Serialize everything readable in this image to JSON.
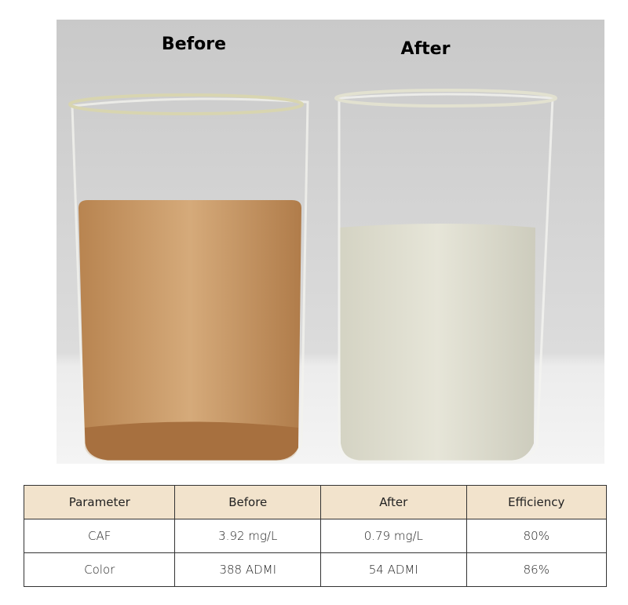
{
  "photo": {
    "labels": [
      "Before",
      "After"
    ]
  },
  "table": {
    "header": [
      "Parameter",
      "Before",
      "After",
      "Efficiency"
    ],
    "rows": [
      [
        "CAF",
        "3.92 mg/L",
        "0.79 mg/L",
        "80%"
      ],
      [
        "Color",
        "388 ADMI",
        "54 ADMI",
        "86%"
      ]
    ]
  }
}
